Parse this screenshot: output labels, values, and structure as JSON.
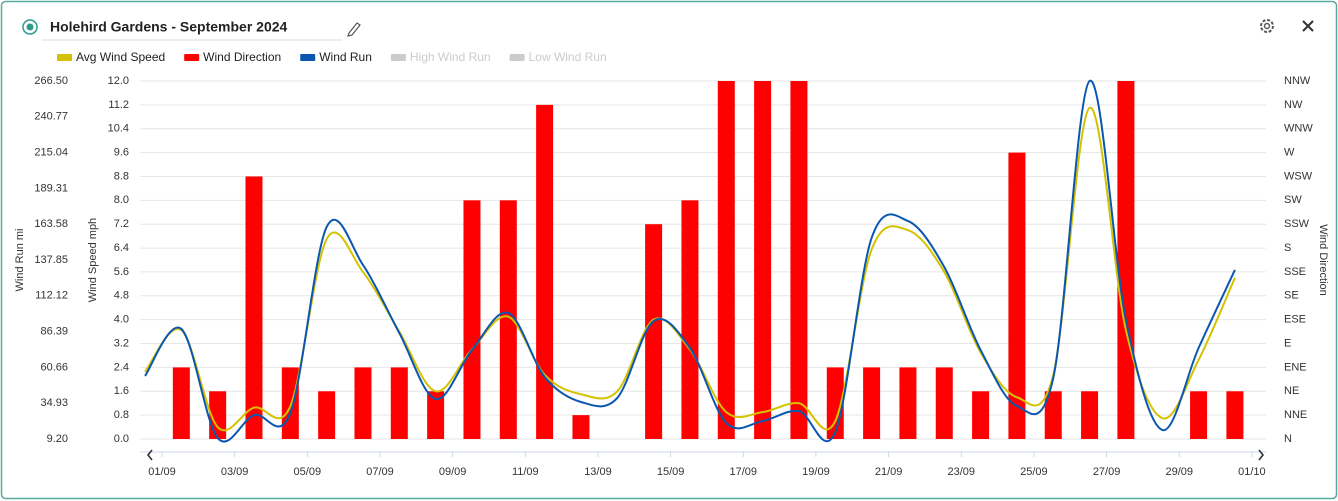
{
  "header": {
    "title": "Holehird Gardens - September 2024"
  },
  "chart_data": {
    "type": "combo",
    "categories": [
      "01/09",
      null,
      "03/09",
      null,
      "05/09",
      null,
      "07/09",
      null,
      "09/09",
      null,
      "11/09",
      null,
      "13/09",
      null,
      "15/09",
      null,
      "17/09",
      null,
      "19/09",
      null,
      "21/09",
      null,
      "23/09",
      null,
      "25/09",
      null,
      "27/09",
      null,
      "29/09",
      null,
      "01/10"
    ],
    "ylabel": "Wind Speed mph",
    "y2label": "Wind Run mi",
    "y3label": "Wind Direction",
    "ylim": [
      0,
      12
    ],
    "yticks": [
      {
        "value": 0,
        "label": "0.0"
      },
      0.8,
      1.6,
      2.4,
      3.2,
      {
        "value": 4,
        "label": "4.0"
      },
      4.8,
      5.6,
      6.4,
      7.2,
      {
        "value": 8,
        "label": "8.0"
      },
      8.8,
      9.6,
      10.4,
      11.2,
      {
        "value": 12,
        "label": "12.0"
      }
    ],
    "y2lim": [
      9.2,
      266.5
    ],
    "y2ticks": [
      {
        "value": 9.2,
        "label": "9.20"
      },
      34.93,
      60.66,
      86.39,
      112.12,
      137.85,
      163.58,
      189.31,
      215.04,
      240.77,
      {
        "value": 266.5,
        "label": "266.50"
      }
    ],
    "y3lim": [
      0,
      337.5
    ],
    "y3ticks": [
      {
        "value": 0,
        "label": "N"
      },
      {
        "value": 22.5,
        "label": "NNE"
      },
      {
        "value": 45,
        "label": "NE"
      },
      {
        "value": 67.5,
        "label": "ENE"
      },
      {
        "value": 90,
        "label": "E"
      },
      {
        "value": 112.5,
        "label": "ESE"
      },
      {
        "value": 135,
        "label": "SE"
      },
      {
        "value": 157.5,
        "label": "SSE"
      },
      {
        "value": 180,
        "label": "S"
      },
      {
        "value": 202.5,
        "label": "SSW"
      },
      {
        "value": 225,
        "label": "SW"
      },
      {
        "value": 247.5,
        "label": "WSW"
      },
      {
        "value": 270,
        "label": "W"
      },
      {
        "value": 292.5,
        "label": "WNW"
      },
      {
        "value": 315,
        "label": "NW"
      },
      {
        "value": 337.5,
        "label": "NNW"
      }
    ],
    "grid": true,
    "series": [
      {
        "name": "Avg Wind Speed",
        "color": "#d4c100",
        "kind": "line",
        "axis": "y",
        "values": [
          2.25,
          3.65,
          0.4,
          1.05,
          1.1,
          6.7,
          5.6,
          3.6,
          1.6,
          3.0,
          4.1,
          2.15,
          1.5,
          1.6,
          4.0,
          3.0,
          0.9,
          0.9,
          1.2,
          0.6,
          6.35,
          7.0,
          5.6,
          2.9,
          1.4,
          2.15,
          11.1,
          3.65,
          0.7,
          2.65,
          5.4
        ]
      },
      {
        "name": "Wind Direction",
        "color": "#ff0000",
        "kind": "bar",
        "axis": "y3",
        "values": [
          null,
          67.5,
          45,
          247.5,
          67.5,
          45,
          67.5,
          67.5,
          45,
          225,
          225,
          315,
          22.5,
          null,
          202.5,
          225,
          337.5,
          337.5,
          337.5,
          67.5,
          67.5,
          67.5,
          67.5,
          45,
          270,
          45,
          45,
          337.5,
          null,
          45,
          45
        ]
      },
      {
        "name": "Wind Run",
        "color": "#0b57b0",
        "kind": "line",
        "axis": "y2",
        "values": [
          54.5,
          88.3,
          9.9,
          26.4,
          27.9,
          161.6,
          134.3,
          85.4,
          37.9,
          73.2,
          99.8,
          53.8,
          35.8,
          38.7,
          94.0,
          74.6,
          20.7,
          22.1,
          29.3,
          14.2,
          153.7,
          165.9,
          132.8,
          73.2,
          32.9,
          53.0,
          266.5,
          94.7,
          15.7,
          74.6,
          130.7
        ]
      },
      {
        "name": "High Wind Run",
        "color": "#cccccc",
        "visible": false
      },
      {
        "name": "Low Wind Run",
        "color": "#cccccc",
        "visible": false
      }
    ]
  }
}
